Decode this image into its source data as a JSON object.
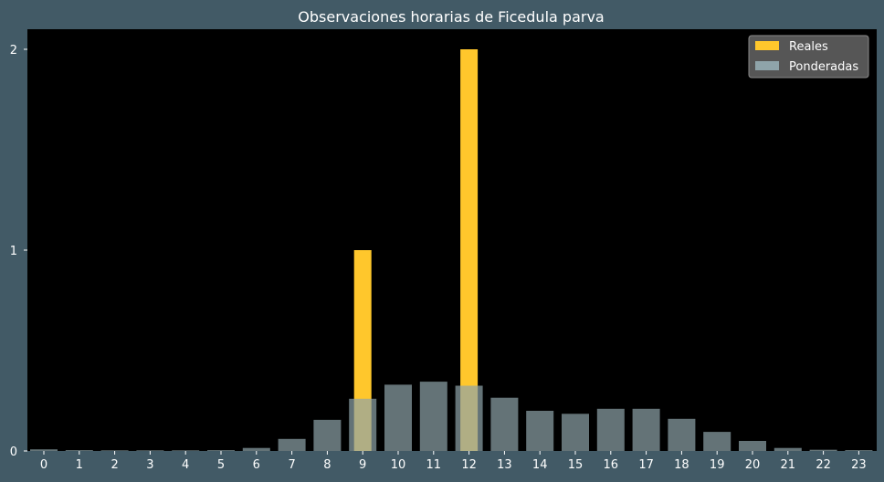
{
  "chart_data": {
    "type": "bar",
    "title": "Observaciones horarias de Ficedula parva",
    "xlabel": "",
    "ylabel": "",
    "categories": [
      "0",
      "1",
      "2",
      "3",
      "4",
      "5",
      "6",
      "7",
      "8",
      "9",
      "10",
      "11",
      "12",
      "13",
      "14",
      "15",
      "16",
      "17",
      "18",
      "19",
      "20",
      "21",
      "22",
      "23"
    ],
    "ylim": [
      0,
      2.1
    ],
    "yticks": [
      0,
      1,
      2
    ],
    "grid": false,
    "legend_position": "top-right",
    "series": [
      {
        "name": "Reales",
        "color": "#ffc72c",
        "values": [
          0,
          0,
          0,
          0,
          0,
          0,
          0,
          0,
          0,
          1,
          0,
          0,
          2,
          0,
          0,
          0,
          0,
          0,
          0,
          0,
          0,
          0,
          0,
          0
        ]
      },
      {
        "name": "Ponderadas",
        "color": "#8fa4aa",
        "values": [
          0.008,
          0.004,
          0.003,
          0.003,
          0.003,
          0.004,
          0.015,
          0.06,
          0.155,
          0.26,
          0.33,
          0.345,
          0.325,
          0.265,
          0.2,
          0.185,
          0.21,
          0.21,
          0.16,
          0.095,
          0.05,
          0.015,
          0.006,
          0.004
        ]
      }
    ]
  }
}
